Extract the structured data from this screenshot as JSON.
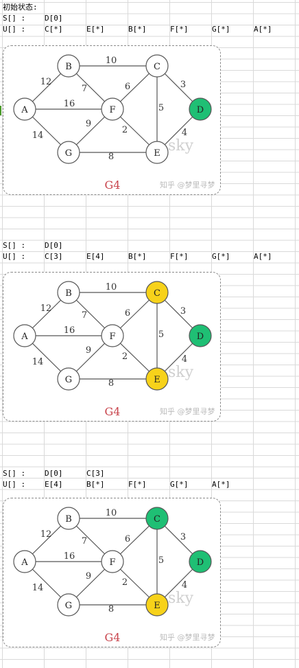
{
  "header": {
    "title": "初始状态:"
  },
  "colors": {
    "visited": "#1fbf74",
    "candidate": "#f7d21a",
    "unvisited": "#ffffff",
    "g_title": "#c8434b"
  },
  "steps": [
    {
      "s_label": "S[] :",
      "s_items": [
        "D[0]"
      ],
      "u_label": "U[] :",
      "u_items": [
        "C[*]",
        "E[*]",
        "B[*]",
        "F[*]",
        "G[*]",
        "A[*]"
      ],
      "node_states": {
        "A": "unvisited",
        "B": "unvisited",
        "C": "unvisited",
        "D": "visited",
        "E": "unvisited",
        "F": "unvisited",
        "G": "unvisited"
      }
    },
    {
      "s_label": "S[] :",
      "s_items": [
        "D[0]"
      ],
      "u_label": "U[] :",
      "u_items": [
        "C[3]",
        "E[4]",
        "B[*]",
        "F[*]",
        "G[*]",
        "A[*]"
      ],
      "node_states": {
        "A": "unvisited",
        "B": "unvisited",
        "C": "candidate",
        "D": "visited",
        "E": "candidate",
        "F": "unvisited",
        "G": "unvisited"
      }
    },
    {
      "s_label": "S[] :",
      "s_items": [
        "D[0]",
        "C[3]"
      ],
      "u_label": "U[] :",
      "u_items": [
        "E[4]",
        "B[*]",
        "F[*]",
        "G[*]",
        "A[*]"
      ],
      "node_states": {
        "A": "unvisited",
        "B": "unvisited",
        "C": "visited",
        "D": "visited",
        "E": "candidate",
        "F": "unvisited",
        "G": "unvisited"
      }
    }
  ],
  "graph": {
    "title": "G4",
    "watermark": "知乎 @梦里寻梦",
    "watermark_sky": "sky",
    "nodes": [
      "A",
      "B",
      "C",
      "D",
      "E",
      "F",
      "G"
    ],
    "edges": [
      {
        "from": "A",
        "to": "B",
        "weight": "12"
      },
      {
        "from": "A",
        "to": "F",
        "weight": "16"
      },
      {
        "from": "A",
        "to": "G",
        "weight": "14"
      },
      {
        "from": "B",
        "to": "C",
        "weight": "10"
      },
      {
        "from": "B",
        "to": "F",
        "weight": "7"
      },
      {
        "from": "C",
        "to": "F",
        "weight": "6"
      },
      {
        "from": "C",
        "to": "D",
        "weight": "3"
      },
      {
        "from": "C",
        "to": "E",
        "weight": "5"
      },
      {
        "from": "F",
        "to": "G",
        "weight": "9"
      },
      {
        "from": "F",
        "to": "E",
        "weight": "2"
      },
      {
        "from": "D",
        "to": "E",
        "weight": "4"
      },
      {
        "from": "G",
        "to": "E",
        "weight": "8"
      }
    ]
  }
}
